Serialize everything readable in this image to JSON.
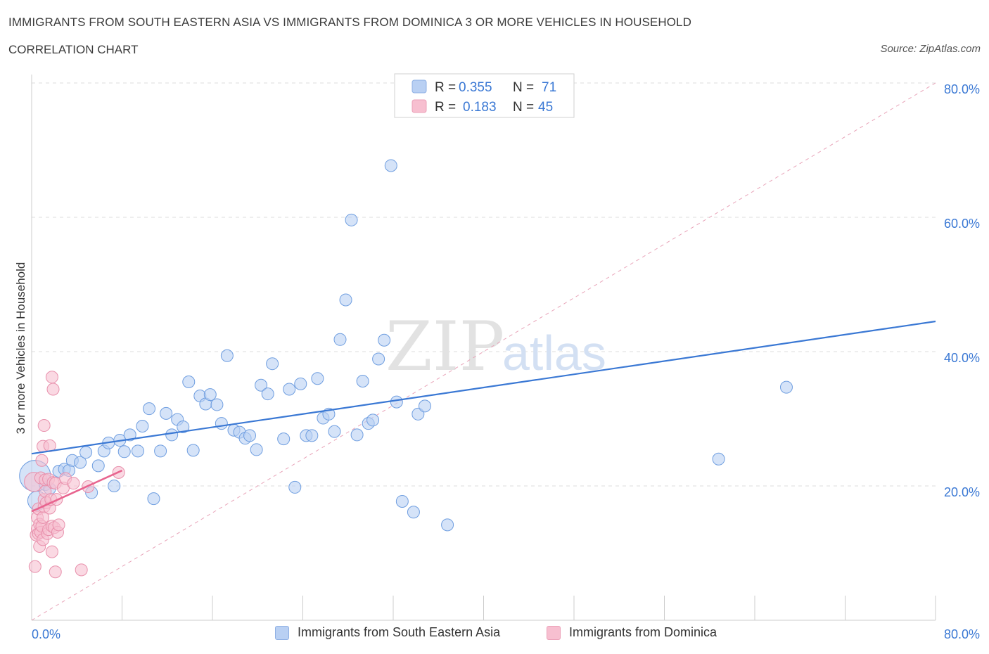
{
  "title": "IMMIGRANTS FROM SOUTH EASTERN ASIA VS IMMIGRANTS FROM DOMINICA 3 OR MORE VEHICLES IN HOUSEHOLD",
  "subtitle": "CORRELATION CHART",
  "source": "Source: ZipAtlas.com",
  "watermark": {
    "zip": "ZIP",
    "atlas": "atlas"
  },
  "colors": {
    "blue": "#3a78d4",
    "blue_fill": "#b9d0f3",
    "pink": "#e8648f",
    "pink_fill": "#f7bfd0",
    "text_blue": "#3a78d4",
    "grid": "#dddddd"
  },
  "legend_top": {
    "rows": [
      {
        "r_label": "R =",
        "r_value": "0.355",
        "n_label": "N =",
        "n_value": "71"
      },
      {
        "r_label": "R =",
        "r_value": "0.183",
        "n_label": "N =",
        "n_value": "45"
      }
    ]
  },
  "legend_bottom": {
    "items": [
      {
        "label": "Immigrants from South Eastern Asia"
      },
      {
        "label": "Immigrants from Dominica"
      }
    ]
  },
  "chart_data": {
    "type": "scatter",
    "title": "IMMIGRANTS FROM SOUTH EASTERN ASIA VS IMMIGRANTS FROM DOMINICA 3 OR MORE VEHICLES IN HOUSEHOLD",
    "xlabel": "",
    "ylabel": "3 or more Vehicles in Household",
    "xlim": [
      0,
      80
    ],
    "ylim": [
      0,
      80
    ],
    "x_tick_labels": [
      {
        "value": 0,
        "label": "0.0%"
      },
      {
        "value": 80,
        "label": "80.0%"
      }
    ],
    "y_tick_labels": [
      {
        "value": 20,
        "label": "20.0%"
      },
      {
        "value": 40,
        "label": "40.0%"
      },
      {
        "value": 60,
        "label": "60.0%"
      },
      {
        "value": 80,
        "label": "80.0%"
      }
    ],
    "x_minor_ticks": [
      0,
      8,
      16,
      24,
      32,
      40,
      48,
      56,
      64,
      72,
      80
    ],
    "series": [
      {
        "name": "Immigrants from South Eastern Asia",
        "R": 0.355,
        "N": 71,
        "trend": {
          "x": [
            0,
            80
          ],
          "y": [
            24.8,
            44.5
          ]
        },
        "points": [
          {
            "x": 0.3,
            "y": 21.5,
            "s": 2.6
          },
          {
            "x": 0.5,
            "y": 17.8,
            "s": 1.6
          },
          {
            "x": 1.2,
            "y": 20.2,
            "s": 1.0
          },
          {
            "x": 1.6,
            "y": 19.6,
            "s": 1.0
          },
          {
            "x": 2.4,
            "y": 22.2,
            "s": 1.0
          },
          {
            "x": 2.9,
            "y": 22.5,
            "s": 1.0
          },
          {
            "x": 3.3,
            "y": 22.3,
            "s": 1.0
          },
          {
            "x": 3.6,
            "y": 23.8,
            "s": 1.0
          },
          {
            "x": 4.3,
            "y": 23.5,
            "s": 1.0
          },
          {
            "x": 4.8,
            "y": 25.0,
            "s": 1.0
          },
          {
            "x": 5.3,
            "y": 19.0,
            "s": 1.0
          },
          {
            "x": 5.9,
            "y": 23.0,
            "s": 1.0
          },
          {
            "x": 6.4,
            "y": 25.2,
            "s": 1.0
          },
          {
            "x": 6.8,
            "y": 26.4,
            "s": 1.0
          },
          {
            "x": 7.3,
            "y": 20.0,
            "s": 1.0
          },
          {
            "x": 7.8,
            "y": 26.8,
            "s": 1.0
          },
          {
            "x": 8.2,
            "y": 25.1,
            "s": 1.0
          },
          {
            "x": 8.7,
            "y": 27.6,
            "s": 1.0
          },
          {
            "x": 9.4,
            "y": 25.2,
            "s": 1.0
          },
          {
            "x": 9.8,
            "y": 28.9,
            "s": 1.0
          },
          {
            "x": 10.4,
            "y": 31.5,
            "s": 1.0
          },
          {
            "x": 10.8,
            "y": 18.1,
            "s": 1.0
          },
          {
            "x": 11.4,
            "y": 25.2,
            "s": 1.0
          },
          {
            "x": 11.9,
            "y": 30.8,
            "s": 1.0
          },
          {
            "x": 12.4,
            "y": 27.6,
            "s": 1.0
          },
          {
            "x": 12.9,
            "y": 29.9,
            "s": 1.0
          },
          {
            "x": 13.4,
            "y": 28.8,
            "s": 1.0
          },
          {
            "x": 13.9,
            "y": 35.5,
            "s": 1.0
          },
          {
            "x": 14.3,
            "y": 25.3,
            "s": 1.0
          },
          {
            "x": 14.9,
            "y": 33.4,
            "s": 1.0
          },
          {
            "x": 15.4,
            "y": 32.2,
            "s": 1.0
          },
          {
            "x": 15.8,
            "y": 33.6,
            "s": 1.0
          },
          {
            "x": 16.4,
            "y": 32.1,
            "s": 1.0
          },
          {
            "x": 16.8,
            "y": 29.3,
            "s": 1.0
          },
          {
            "x": 17.3,
            "y": 39.4,
            "s": 1.0
          },
          {
            "x": 17.9,
            "y": 28.3,
            "s": 1.0
          },
          {
            "x": 18.4,
            "y": 28.0,
            "s": 1.0
          },
          {
            "x": 18.9,
            "y": 27.1,
            "s": 1.0
          },
          {
            "x": 19.3,
            "y": 27.5,
            "s": 1.0
          },
          {
            "x": 19.9,
            "y": 25.4,
            "s": 1.0
          },
          {
            "x": 20.3,
            "y": 35.0,
            "s": 1.0
          },
          {
            "x": 20.9,
            "y": 33.7,
            "s": 1.0
          },
          {
            "x": 21.3,
            "y": 38.2,
            "s": 1.0
          },
          {
            "x": 22.3,
            "y": 27.0,
            "s": 1.0
          },
          {
            "x": 22.8,
            "y": 34.4,
            "s": 1.0
          },
          {
            "x": 23.3,
            "y": 19.8,
            "s": 1.0
          },
          {
            "x": 23.8,
            "y": 35.2,
            "s": 1.0
          },
          {
            "x": 24.3,
            "y": 27.5,
            "s": 1.0
          },
          {
            "x": 24.8,
            "y": 27.5,
            "s": 1.0
          },
          {
            "x": 25.3,
            "y": 36.0,
            "s": 1.0
          },
          {
            "x": 25.8,
            "y": 30.1,
            "s": 1.0
          },
          {
            "x": 26.3,
            "y": 30.7,
            "s": 1.0
          },
          {
            "x": 26.8,
            "y": 28.1,
            "s": 1.0
          },
          {
            "x": 27.3,
            "y": 41.8,
            "s": 1.0
          },
          {
            "x": 27.8,
            "y": 47.7,
            "s": 1.0
          },
          {
            "x": 28.3,
            "y": 59.6,
            "s": 1.0
          },
          {
            "x": 28.8,
            "y": 27.6,
            "s": 1.0
          },
          {
            "x": 29.3,
            "y": 35.6,
            "s": 1.0
          },
          {
            "x": 29.8,
            "y": 29.3,
            "s": 1.0
          },
          {
            "x": 30.2,
            "y": 29.8,
            "s": 1.0
          },
          {
            "x": 30.7,
            "y": 38.9,
            "s": 1.0
          },
          {
            "x": 31.2,
            "y": 41.7,
            "s": 1.0
          },
          {
            "x": 31.8,
            "y": 67.7,
            "s": 1.0
          },
          {
            "x": 32.3,
            "y": 32.5,
            "s": 1.0
          },
          {
            "x": 32.8,
            "y": 17.7,
            "s": 1.0
          },
          {
            "x": 33.8,
            "y": 16.1,
            "s": 1.0
          },
          {
            "x": 34.2,
            "y": 30.7,
            "s": 1.0
          },
          {
            "x": 34.8,
            "y": 31.9,
            "s": 1.0
          },
          {
            "x": 36.8,
            "y": 14.2,
            "s": 1.0
          },
          {
            "x": 60.8,
            "y": 24.0,
            "s": 1.0
          },
          {
            "x": 66.8,
            "y": 34.7,
            "s": 1.0
          }
        ]
      },
      {
        "name": "Immigrants from Dominica",
        "R": 0.183,
        "N": 45,
        "trend": {
          "x": [
            0,
            8
          ],
          "y": [
            16.2,
            22.3
          ]
        },
        "points": [
          {
            "x": 0.2,
            "y": 20.6,
            "s": 1.6
          },
          {
            "x": 0.3,
            "y": 8.0,
            "s": 1.0
          },
          {
            "x": 0.4,
            "y": 12.7,
            "s": 1.0
          },
          {
            "x": 0.5,
            "y": 13.6,
            "s": 1.0
          },
          {
            "x": 0.5,
            "y": 15.3,
            "s": 1.0
          },
          {
            "x": 0.6,
            "y": 16.6,
            "s": 1.0
          },
          {
            "x": 0.6,
            "y": 12.9,
            "s": 1.0
          },
          {
            "x": 0.7,
            "y": 14.3,
            "s": 1.0
          },
          {
            "x": 0.7,
            "y": 11.0,
            "s": 1.0
          },
          {
            "x": 0.8,
            "y": 21.2,
            "s": 1.0
          },
          {
            "x": 0.8,
            "y": 13.1,
            "s": 1.0
          },
          {
            "x": 0.9,
            "y": 23.8,
            "s": 1.0
          },
          {
            "x": 0.9,
            "y": 14.0,
            "s": 1.0
          },
          {
            "x": 1.0,
            "y": 12.0,
            "s": 1.0
          },
          {
            "x": 1.0,
            "y": 15.3,
            "s": 1.0
          },
          {
            "x": 1.1,
            "y": 16.9,
            "s": 1.0
          },
          {
            "x": 1.1,
            "y": 18.0,
            "s": 1.0
          },
          {
            "x": 1.2,
            "y": 19.2,
            "s": 1.0
          },
          {
            "x": 1.2,
            "y": 20.9,
            "s": 1.0
          },
          {
            "x": 1.0,
            "y": 25.9,
            "s": 1.0
          },
          {
            "x": 1.1,
            "y": 29.0,
            "s": 1.0
          },
          {
            "x": 1.3,
            "y": 17.5,
            "s": 1.0
          },
          {
            "x": 1.4,
            "y": 12.9,
            "s": 1.0
          },
          {
            "x": 1.5,
            "y": 13.5,
            "s": 1.0
          },
          {
            "x": 1.5,
            "y": 21.0,
            "s": 1.0
          },
          {
            "x": 1.6,
            "y": 16.7,
            "s": 1.0
          },
          {
            "x": 1.6,
            "y": 26.0,
            "s": 1.0
          },
          {
            "x": 1.7,
            "y": 18.0,
            "s": 1.0
          },
          {
            "x": 1.8,
            "y": 14.0,
            "s": 1.0
          },
          {
            "x": 1.8,
            "y": 10.2,
            "s": 1.0
          },
          {
            "x": 1.9,
            "y": 20.5,
            "s": 1.0
          },
          {
            "x": 2.0,
            "y": 13.8,
            "s": 1.0
          },
          {
            "x": 1.8,
            "y": 36.2,
            "s": 1.0
          },
          {
            "x": 1.9,
            "y": 34.4,
            "s": 1.0
          },
          {
            "x": 2.1,
            "y": 20.4,
            "s": 1.0
          },
          {
            "x": 2.2,
            "y": 18.0,
            "s": 1.0
          },
          {
            "x": 2.1,
            "y": 7.2,
            "s": 1.0
          },
          {
            "x": 2.3,
            "y": 13.1,
            "s": 1.0
          },
          {
            "x": 2.4,
            "y": 14.2,
            "s": 1.0
          },
          {
            "x": 2.8,
            "y": 19.7,
            "s": 1.0
          },
          {
            "x": 3.0,
            "y": 21.1,
            "s": 1.0
          },
          {
            "x": 3.7,
            "y": 20.4,
            "s": 1.0
          },
          {
            "x": 4.4,
            "y": 7.5,
            "s": 1.0
          },
          {
            "x": 5.0,
            "y": 19.9,
            "s": 1.0
          },
          {
            "x": 7.7,
            "y": 22.0,
            "s": 1.0
          }
        ]
      }
    ],
    "reference_line": {
      "style": "dashed",
      "x": [
        0,
        80
      ],
      "y": [
        0,
        80
      ]
    }
  }
}
